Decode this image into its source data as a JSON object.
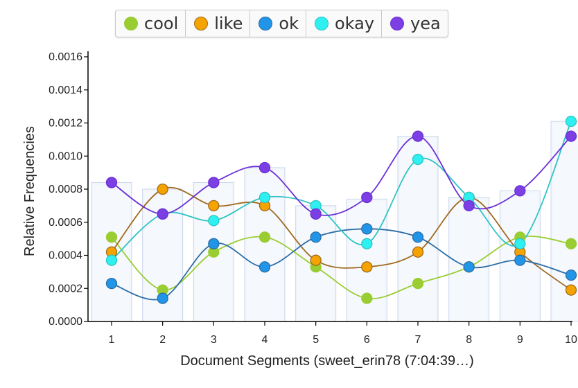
{
  "chart_data": {
    "type": "line",
    "xlabel": "Document Segments (sweet_erin78 (7:04:39…)",
    "ylabel": "Relative Frequencies",
    "categories": [
      "1",
      "2",
      "3",
      "4",
      "5",
      "6",
      "7",
      "8",
      "9",
      "10"
    ],
    "ylim": [
      0,
      0.0016
    ],
    "yticks": [
      "0.0000",
      "0.0002",
      "0.0004",
      "0.0006",
      "0.0008",
      "0.0010",
      "0.0012",
      "0.0014",
      "0.0016"
    ],
    "legend_position": "top-center",
    "bar_totals": [
      0.00084,
      0.0008,
      0.00084,
      0.00093,
      0.0007,
      0.00074,
      0.00112,
      0.00075,
      0.00079,
      0.00121
    ],
    "series": [
      {
        "name": "cool",
        "color": "#9ACD32",
        "line_color": "#9ACD32",
        "values": [
          0.00051,
          0.00019,
          0.00042,
          0.00051,
          0.00033,
          0.00014,
          0.00023,
          0.00033,
          0.00051,
          0.00047
        ]
      },
      {
        "name": "like",
        "color": "#F4A300",
        "line_color": "#A0691E",
        "values": [
          0.00042,
          0.0008,
          0.0007,
          0.0007,
          0.00037,
          0.00033,
          0.00042,
          0.00075,
          0.00042,
          0.00019
        ]
      },
      {
        "name": "ok",
        "color": "#2196E8",
        "line_color": "#2B6DA6",
        "values": [
          0.00023,
          0.00014,
          0.00047,
          0.00033,
          0.00051,
          0.00056,
          0.00051,
          0.00033,
          0.00037,
          0.00028
        ]
      },
      {
        "name": "okay",
        "color": "#2EF0F0",
        "line_color": "#2EC4C4",
        "values": [
          0.00037,
          0.00065,
          0.00061,
          0.00075,
          0.0007,
          0.00047,
          0.00098,
          0.00075,
          0.00047,
          0.00121
        ]
      },
      {
        "name": "yea",
        "color": "#7B3FE4",
        "line_color": "#6A2FD6",
        "values": [
          0.00084,
          0.00065,
          0.00084,
          0.00093,
          0.00065,
          0.00075,
          0.00112,
          0.0007,
          0.00079,
          0.00112
        ]
      }
    ]
  }
}
